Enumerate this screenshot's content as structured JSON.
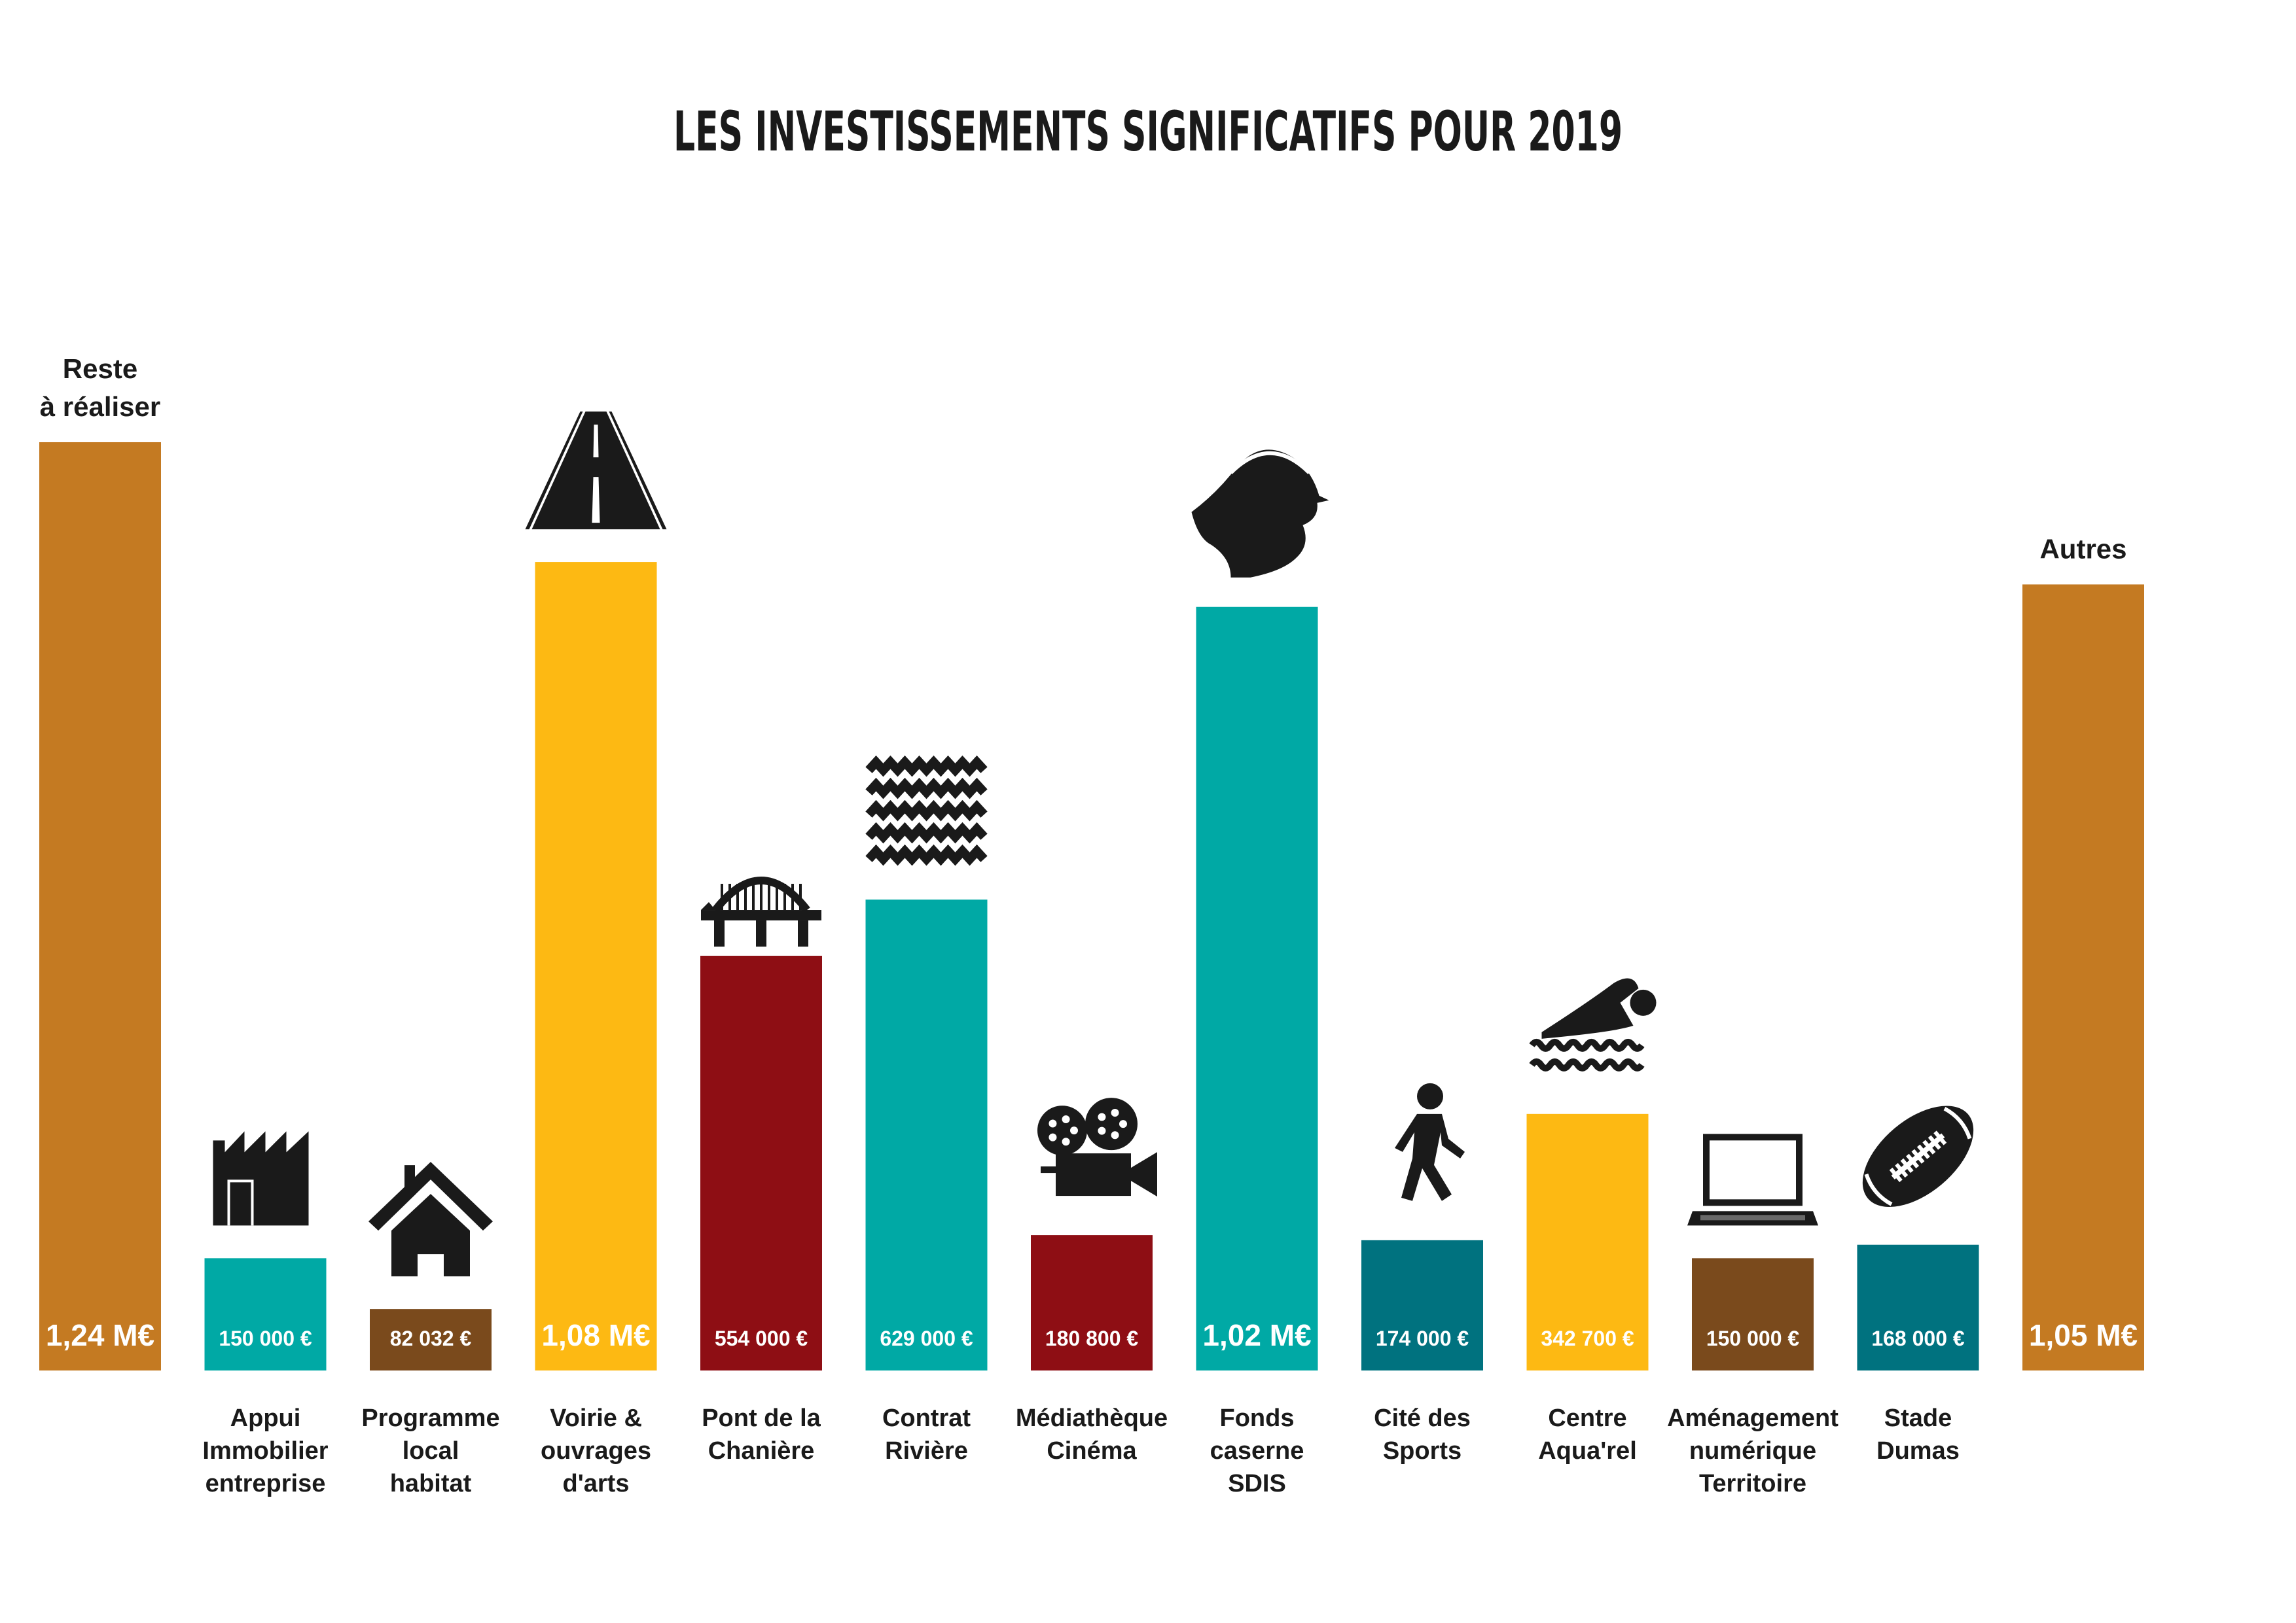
{
  "chart_data": {
    "type": "bar",
    "title": "LES INVESTISSEMENTS SIGNIFICATIFS POUR 2019",
    "xlabel": "",
    "ylabel": "",
    "ylim": [
      0,
      1400000
    ],
    "grid": false,
    "legend": "none",
    "categories": [
      "Reste à réaliser",
      "Appui Immobilier entreprise",
      "Programme local habitat",
      "Voirie & ouvrages d'arts",
      "Pont de la Chanière",
      "Contrat Rivière",
      "Médiathèque Cinéma",
      "Fonds caserne SDIS",
      "Cité des Sports",
      "Centre Aqua'rel",
      "Aménagement numérique Territoire",
      "Stade Dumas",
      "Autres"
    ],
    "values": [
      1240000,
      150000,
      82032,
      1080000,
      554000,
      629000,
      180800,
      1020000,
      174000,
      342700,
      150000,
      168000,
      1050000
    ],
    "bars": [
      {
        "value_label": "1,24 M€",
        "top_label": [
          "Reste",
          "à réaliser"
        ],
        "bottom_label": [],
        "color": "#c47a22",
        "icon": "none"
      },
      {
        "value_label": "150 000 €",
        "top_label": [],
        "bottom_label": [
          "Appui",
          "Immobilier",
          "entreprise"
        ],
        "color": "#00a9a5",
        "icon": "factory-icon"
      },
      {
        "value_label": "82 032 €",
        "top_label": [],
        "bottom_label": [
          "Programme",
          "local",
          "habitat"
        ],
        "color": "#7a4a1c",
        "icon": "house-icon"
      },
      {
        "value_label": "1,08 M€",
        "top_label": [],
        "bottom_label": [
          "Voirie &",
          "ouvrages",
          "d'arts"
        ],
        "color": "#fdb913",
        "icon": "road-icon"
      },
      {
        "value_label": "554 000 €",
        "top_label": [],
        "bottom_label": [
          "Pont de la",
          "Chanière"
        ],
        "color": "#8e0e14",
        "icon": "bridge-icon"
      },
      {
        "value_label": "629 000 €",
        "top_label": [],
        "bottom_label": [
          "Contrat",
          "Rivière"
        ],
        "color": "#00a9a5",
        "icon": "water-icon"
      },
      {
        "value_label": "180 800 €",
        "top_label": [],
        "bottom_label": [
          "Médiathèque",
          "Cinéma"
        ],
        "color": "#8e0e14",
        "icon": "film-camera-icon"
      },
      {
        "value_label": "1,02 M€",
        "top_label": [],
        "bottom_label": [
          "Fonds",
          "caserne",
          "SDIS"
        ],
        "color": "#00a9a5",
        "icon": "firefighter-icon"
      },
      {
        "value_label": "174 000 €",
        "top_label": [],
        "bottom_label": [
          "Cité des",
          "Sports"
        ],
        "color": "#00727f",
        "icon": "walking-person-icon"
      },
      {
        "value_label": "342 700 €",
        "top_label": [],
        "bottom_label": [
          "Centre",
          "Aqua'rel"
        ],
        "color": "#fdb913",
        "icon": "swimmer-icon"
      },
      {
        "value_label": "150 000 €",
        "top_label": [],
        "bottom_label": [
          "Aménagement",
          "numérique",
          "Territoire"
        ],
        "color": "#7a4a1c",
        "icon": "laptop-icon"
      },
      {
        "value_label": "168 000 €",
        "top_label": [],
        "bottom_label": [
          "Stade",
          "Dumas"
        ],
        "color": "#00727f",
        "icon": "rugby-ball-icon"
      },
      {
        "value_label": "1,05 M€",
        "top_label": [
          "Autres"
        ],
        "bottom_label": [],
        "color": "#c47a22",
        "icon": "none"
      }
    ]
  }
}
